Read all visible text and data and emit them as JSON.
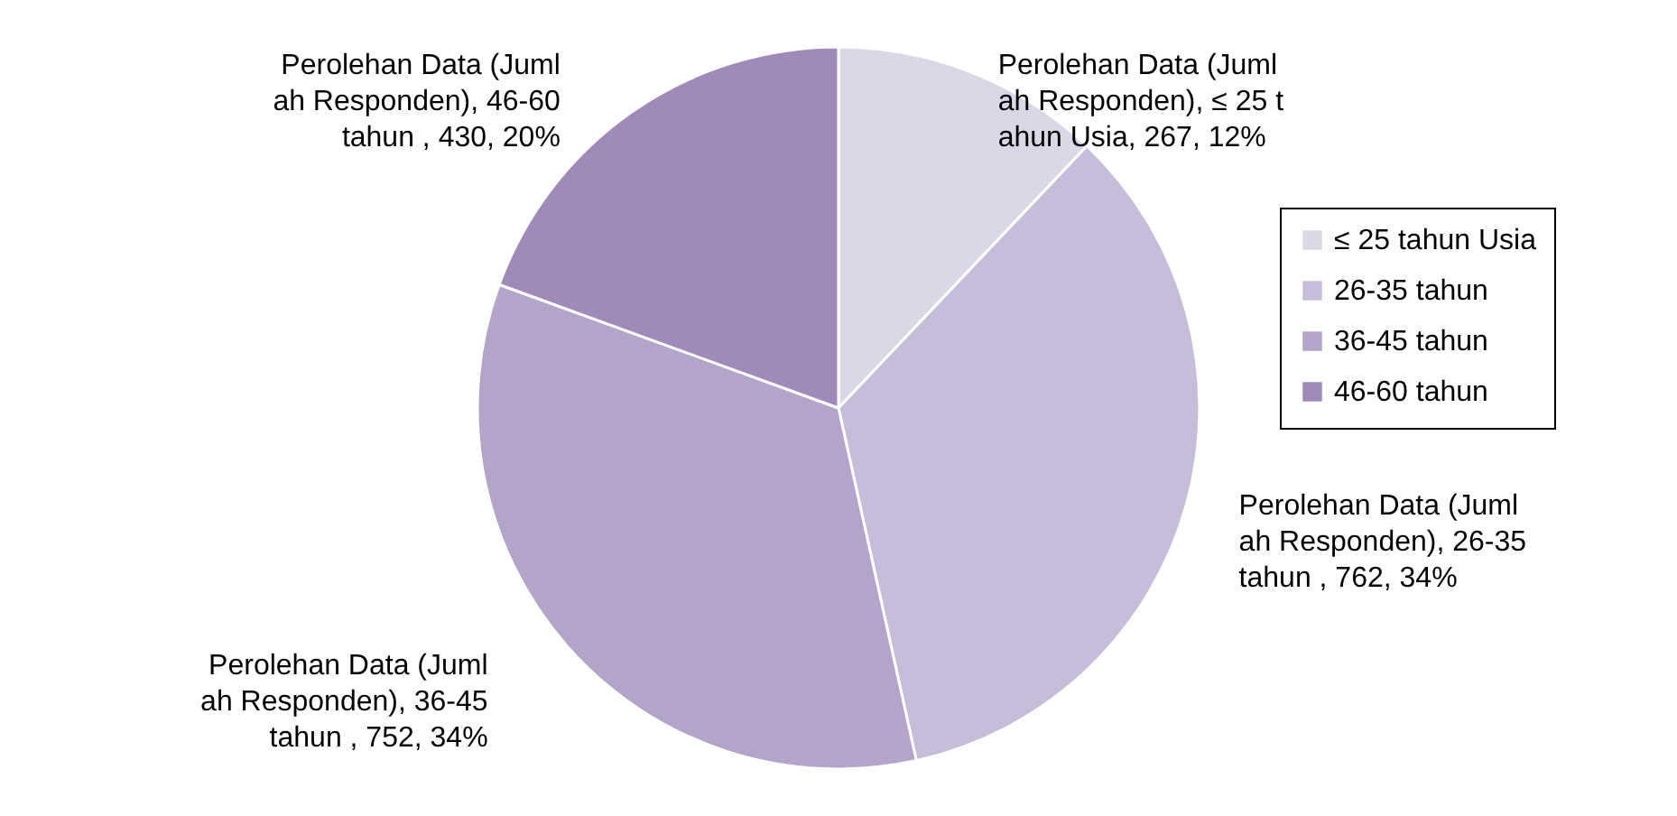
{
  "chart_data": {
    "type": "pie",
    "categories": [
      "≤ 25 tahun Usia",
      "26-35 tahun",
      "36-45 tahun",
      "46-60 tahun"
    ],
    "values": [
      267,
      762,
      752,
      430
    ],
    "colors": [
      "#dcd7e6",
      "#c6bed8",
      "#b2a5c9",
      "#9f8aba"
    ],
    "value_labels": [
      "Perolehan Data (Juml\nah Responden), ≤ 25 t\nahun Usia, 267, 12%",
      "Perolehan Data (Juml\nah Responden), 26-35\ntahun , 762, 34%",
      "Perolehan Data (Juml\nah Responden), 36-45\ntahun , 752, 34%",
      "Perolehan Data (Juml\nah Responden), 46-60\ntahun , 430, 20%"
    ],
    "legend": "right"
  }
}
